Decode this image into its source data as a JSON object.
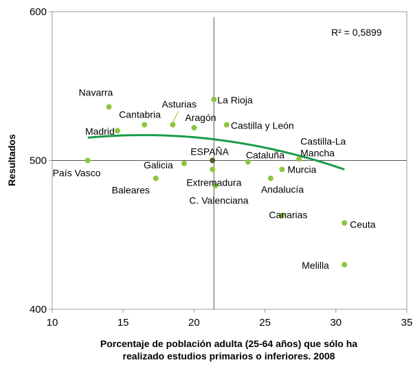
{
  "chart_data": {
    "type": "scatter",
    "title": "",
    "xlabel_lines": [
      "Porcentaje de población adulta (25-64 años) que sólo ha",
      "realizado estudios primarios o inferiores. 2008"
    ],
    "ylabel": "Resultados",
    "xlim": [
      10,
      35
    ],
    "ylim": [
      400,
      600
    ],
    "xticks": [
      10,
      15,
      20,
      25,
      30,
      35
    ],
    "yticks": [
      400,
      500,
      600
    ],
    "reference_lines": {
      "x": 21.4,
      "y": 500
    },
    "r_squared_label": "R² = 0,5899",
    "trendline": {
      "type": "polynomial-2",
      "x_range": [
        12.5,
        30.6
      ],
      "coef": [
        -0.115,
        3.78,
        486.0
      ],
      "color": "#1a9a4a"
    },
    "point_color": "#8cc63f",
    "highlight_color": "#4a5a2a",
    "points": [
      {
        "name": "Navarra",
        "x": 14.0,
        "y": 536
      },
      {
        "name": "Madrid",
        "x": 14.6,
        "y": 520
      },
      {
        "name": "Cantabria",
        "x": 16.5,
        "y": 524
      },
      {
        "name": "Asturias",
        "x": 18.5,
        "y": 524
      },
      {
        "name": "Aragón",
        "x": 20.0,
        "y": 522
      },
      {
        "name": "La Rioja",
        "x": 21.4,
        "y": 541
      },
      {
        "name": "Castilla y León",
        "x": 22.3,
        "y": 524
      },
      {
        "name": "País Vasco",
        "x": 12.5,
        "y": 500
      },
      {
        "name": "Baleares",
        "x": 17.3,
        "y": 488
      },
      {
        "name": "Galicia",
        "x": 19.3,
        "y": 498
      },
      {
        "name": "ESPAÑA",
        "x": 21.3,
        "y": 500
      },
      {
        "name": "Extremadura",
        "x": 21.3,
        "y": 494
      },
      {
        "name": "C. Valenciana",
        "x": 21.5,
        "y": 483
      },
      {
        "name": "Cataluña",
        "x": 23.8,
        "y": 499
      },
      {
        "name": "Andalucía",
        "x": 25.4,
        "y": 488
      },
      {
        "name": "Murcia",
        "x": 26.2,
        "y": 494
      },
      {
        "name": "Castilla-La Mancha",
        "x": 27.4,
        "y": 501
      },
      {
        "name": "Canarias",
        "x": 26.2,
        "y": 463
      },
      {
        "name": "Ceuta",
        "x": 30.6,
        "y": 458
      },
      {
        "name": "Melilla",
        "x": 30.6,
        "y": 430
      }
    ],
    "labels": [
      {
        "point": "Navarra",
        "lines": [
          "Navarra"
        ]
      },
      {
        "point": "Madrid",
        "lines": [
          "Madrid"
        ]
      },
      {
        "point": "Cantabria",
        "lines": [
          "Cantabria"
        ]
      },
      {
        "point": "Asturias",
        "lines": [
          "Asturias"
        ]
      },
      {
        "point": "Aragón",
        "lines": [
          "Aragón"
        ]
      },
      {
        "point": "La Rioja",
        "lines": [
          "La Rioja"
        ]
      },
      {
        "point": "Castilla y León",
        "lines": [
          "Castilla y León"
        ]
      },
      {
        "point": "País Vasco",
        "lines": [
          "País Vasco"
        ]
      },
      {
        "point": "Baleares",
        "lines": [
          "Baleares"
        ]
      },
      {
        "point": "Galicia",
        "lines": [
          "Galicia"
        ]
      },
      {
        "point": "ESPAÑA",
        "lines": [
          "ESPAÑA"
        ]
      },
      {
        "point": "Extremadura",
        "lines": [
          "Extremadura"
        ]
      },
      {
        "point": "C. Valenciana",
        "lines": [
          "C. Valenciana"
        ]
      },
      {
        "point": "Cataluña",
        "lines": [
          "Cataluña"
        ]
      },
      {
        "point": "Andalucía",
        "lines": [
          "Andalucía"
        ]
      },
      {
        "point": "Murcia",
        "lines": [
          "Murcia"
        ]
      },
      {
        "point": "Castilla-La Mancha",
        "lines": [
          "Castilla-La",
          "Mancha"
        ]
      },
      {
        "point": "Canarias",
        "lines": [
          "Canarias"
        ]
      },
      {
        "point": "Ceuta",
        "lines": [
          "Ceuta"
        ]
      },
      {
        "point": "Melilla",
        "lines": [
          "Melilla"
        ]
      }
    ]
  }
}
